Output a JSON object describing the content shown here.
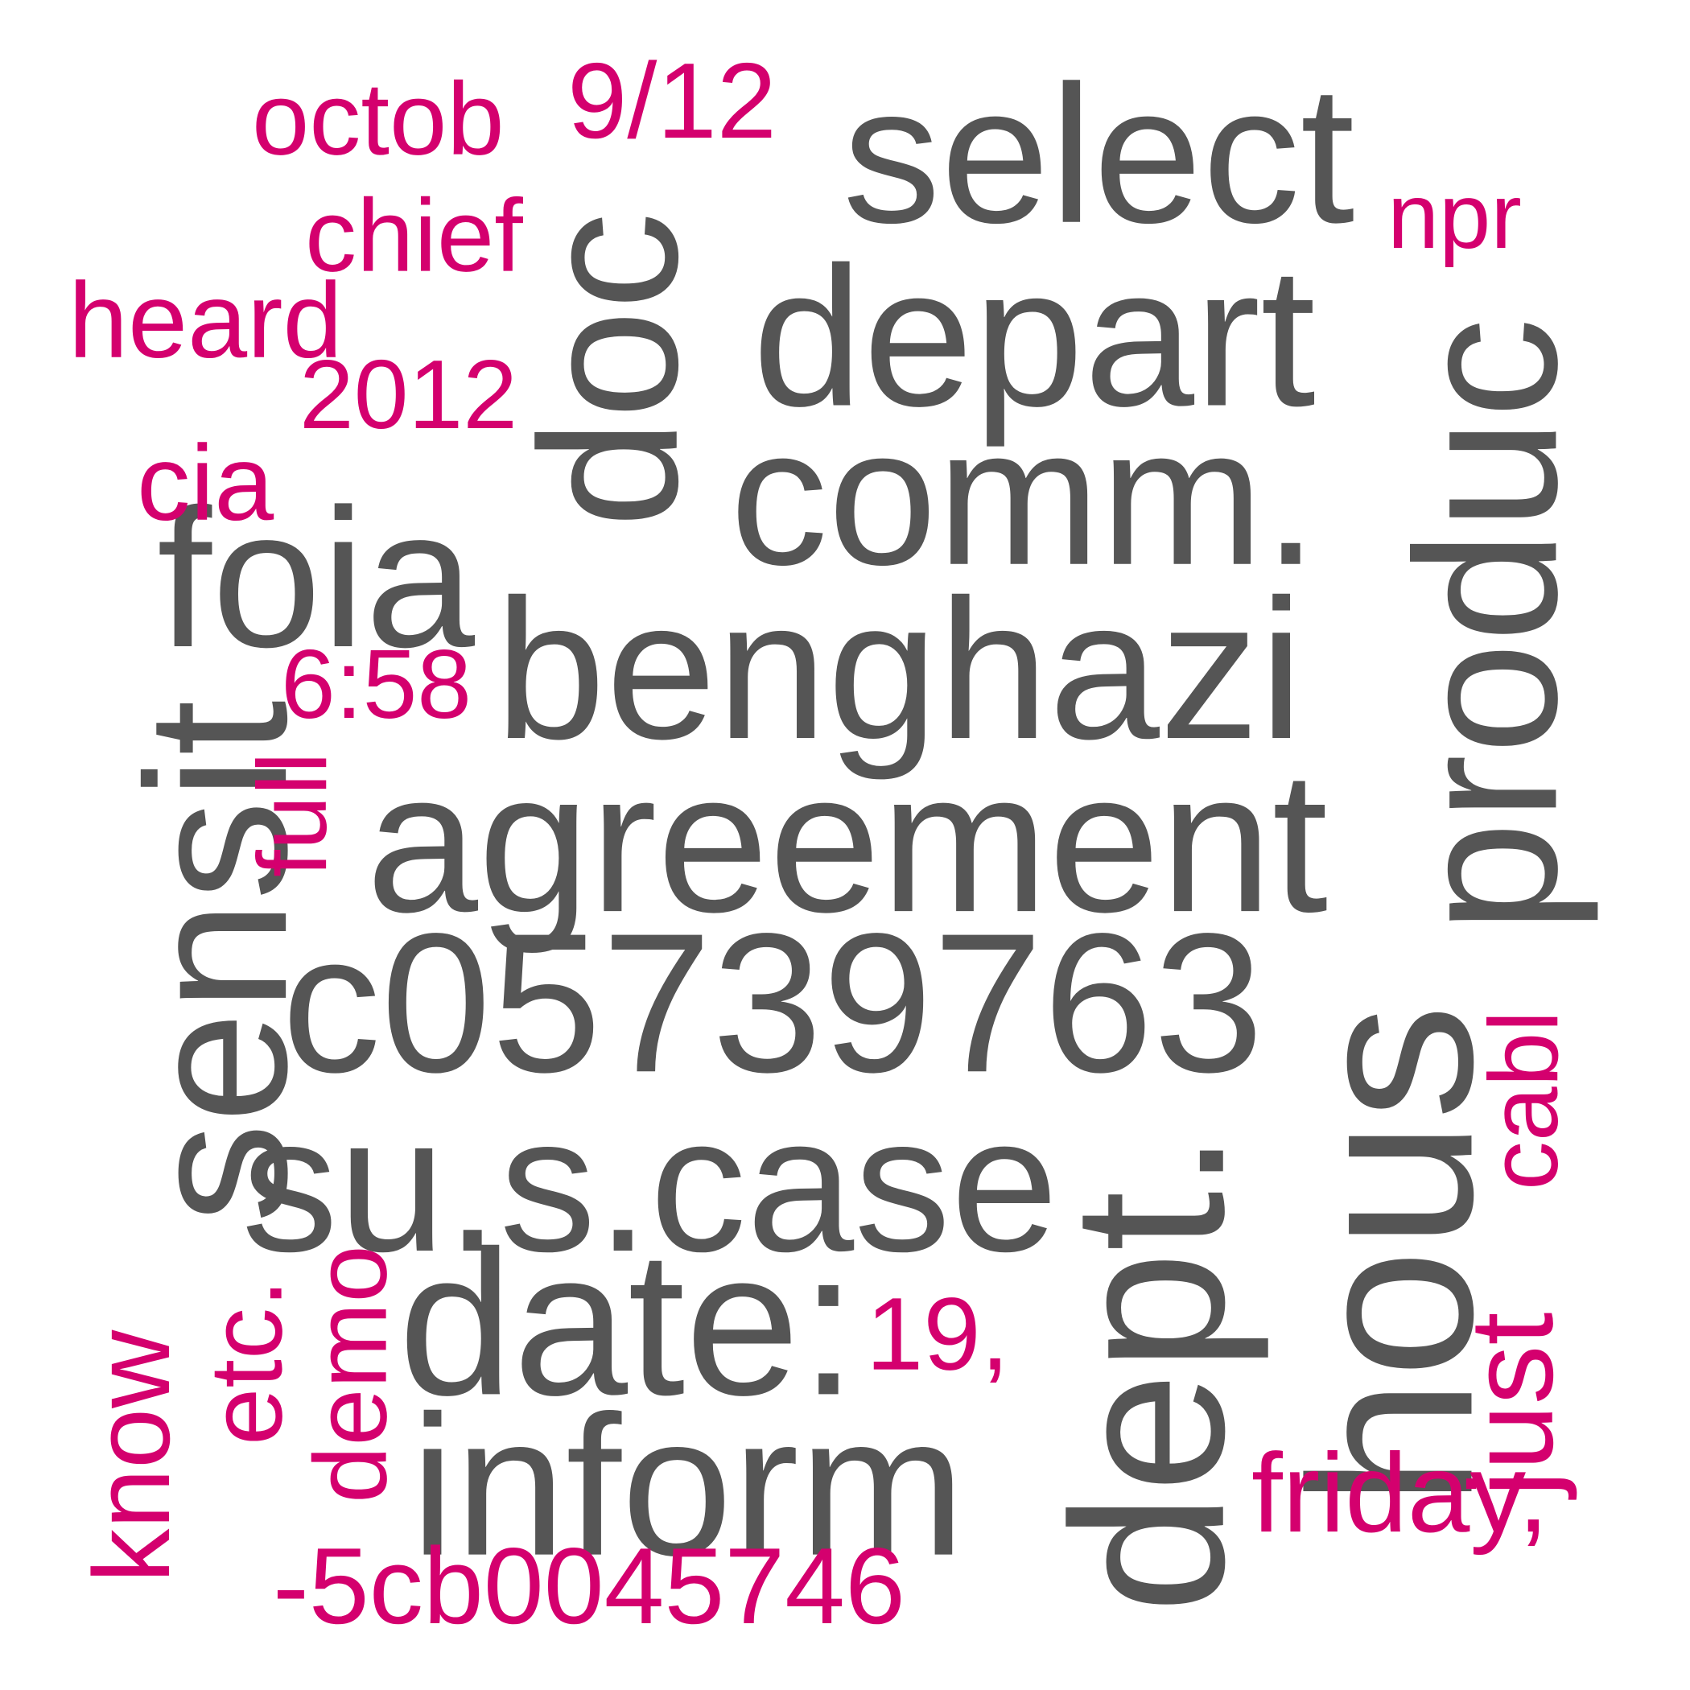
{
  "colors": {
    "primary": "#555555",
    "secondary": "#d4006e",
    "background": "#ffffff"
  },
  "words": [
    {
      "text": "select",
      "tone": "primary"
    },
    {
      "text": "depart",
      "tone": "primary"
    },
    {
      "text": "doc",
      "tone": "primary"
    },
    {
      "text": "comm.",
      "tone": "primary"
    },
    {
      "text": "foia",
      "tone": "primary"
    },
    {
      "text": "benghazi",
      "tone": "primary"
    },
    {
      "text": "agreement",
      "tone": "primary"
    },
    {
      "text": "produc",
      "tone": "primary"
    },
    {
      "text": "sensit",
      "tone": "primary"
    },
    {
      "text": "c05739763",
      "tone": "primary"
    },
    {
      "text": "su.s.case",
      "tone": "primary"
    },
    {
      "text": "hous",
      "tone": "primary"
    },
    {
      "text": "dept.",
      "tone": "primary"
    },
    {
      "text": "date:",
      "tone": "primary"
    },
    {
      "text": "inform",
      "tone": "primary"
    },
    {
      "text": "octob",
      "tone": "secondary"
    },
    {
      "text": "9/12",
      "tone": "secondary"
    },
    {
      "text": "npr",
      "tone": "secondary"
    },
    {
      "text": "chief",
      "tone": "secondary"
    },
    {
      "text": "heard",
      "tone": "secondary"
    },
    {
      "text": "2012",
      "tone": "secondary"
    },
    {
      "text": "cia",
      "tone": "secondary"
    },
    {
      "text": "6:58",
      "tone": "secondary"
    },
    {
      "text": "full",
      "tone": "secondary"
    },
    {
      "text": "cabl",
      "tone": "secondary"
    },
    {
      "text": "19,",
      "tone": "secondary"
    },
    {
      "text": "just",
      "tone": "secondary"
    },
    {
      "text": "know",
      "tone": "secondary"
    },
    {
      "text": "etc.",
      "tone": "secondary"
    },
    {
      "text": "demo",
      "tone": "secondary"
    },
    {
      "text": "friday,",
      "tone": "secondary"
    },
    {
      "text": "-5cb0045746",
      "tone": "secondary"
    }
  ]
}
